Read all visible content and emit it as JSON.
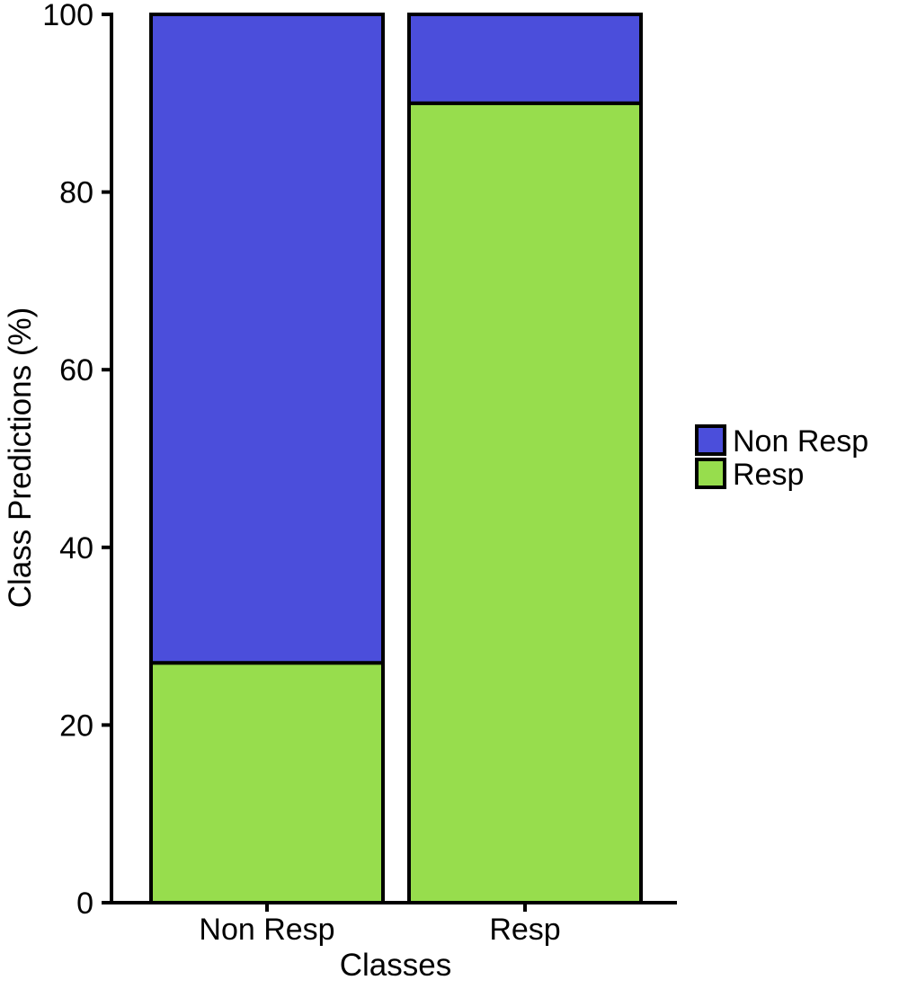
{
  "chart_data": {
    "type": "bar",
    "stacked": true,
    "categories": [
      "Non Resp",
      "Resp"
    ],
    "series": [
      {
        "name": "Resp",
        "values": [
          27,
          90
        ],
        "color": "#97dd4d"
      },
      {
        "name": "Non Resp",
        "values": [
          73,
          10
        ],
        "color": "#4b4edb"
      }
    ],
    "xlabel": "Classes",
    "ylabel": "Class Predictions (%)",
    "ylim": [
      0,
      100
    ],
    "yticks": [
      "0",
      "20",
      "40",
      "60",
      "80",
      "100"
    ],
    "legend": {
      "position": "right",
      "entries": [
        "Non Resp",
        "Resp"
      ]
    },
    "grid": false
  }
}
